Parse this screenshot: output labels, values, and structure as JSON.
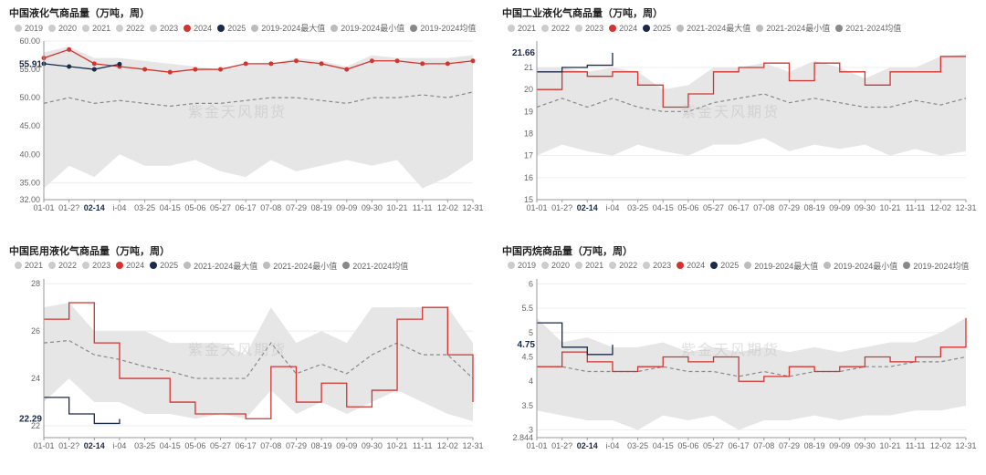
{
  "watermark": "紫金天风期货",
  "global": {
    "x_categories": [
      "01-01",
      "01-2?",
      "02-14",
      "i-04",
      "03-25",
      "04-15",
      "05-06",
      "05-27",
      "06-17",
      "07-08",
      "07-29",
      "08-19",
      "09-09",
      "09-30",
      "10-21",
      "11-11",
      "12-02",
      "12-31"
    ],
    "bold_x_index": 2,
    "band_fill": "#e3e3e3",
    "grid_color": "#eeeeee",
    "axis_color": "#999999",
    "tick_fontsize": 9,
    "title_fontsize": 11,
    "legend_fontsize": 9,
    "background_color": "#ffffff"
  },
  "panels": [
    {
      "id": "lpg-total",
      "title": "中国液化气商品量（万吨，周）",
      "ylim": [
        32,
        60
      ],
      "ytick_step": 5,
      "yticks": [
        32.0,
        35.0,
        40.0,
        45.0,
        50.0,
        55.0,
        60.0
      ],
      "legend": [
        {
          "label": "2019",
          "type": "dot",
          "color": "#cccccc"
        },
        {
          "label": "2020",
          "type": "dot",
          "color": "#cccccc"
        },
        {
          "label": "2021",
          "type": "dot",
          "color": "#cccccc"
        },
        {
          "label": "2022",
          "type": "dot",
          "color": "#cccccc"
        },
        {
          "label": "2023",
          "type": "dot",
          "color": "#cccccc"
        },
        {
          "label": "2024",
          "type": "dot",
          "color": "#d4342f"
        },
        {
          "label": "2025",
          "type": "dot",
          "color": "#1a2a4a"
        },
        {
          "label": "2019-2024最大值",
          "type": "dot",
          "color": "#bcbcbc"
        },
        {
          "label": "2019-2024最小值",
          "type": "dot",
          "color": "#bcbcbc"
        },
        {
          "label": "2019-2024均值",
          "type": "dot",
          "color": "#888888"
        }
      ],
      "band_upper": [
        58,
        59,
        57,
        57,
        56.5,
        56,
        55.5,
        55,
        56,
        56,
        57,
        56.5,
        55.5,
        57.5,
        57,
        57,
        57,
        57.5
      ],
      "band_lower": [
        34,
        38,
        36,
        40,
        38,
        38,
        39,
        37,
        36,
        39,
        37,
        38,
        39,
        38,
        39,
        34,
        36,
        39
      ],
      "mean": [
        49,
        50,
        49,
        49.5,
        49,
        48.5,
        49,
        49,
        49.5,
        50,
        50,
        49.5,
        49,
        50,
        50,
        50.5,
        50,
        51
      ],
      "series_2024": {
        "color": "#d4342f",
        "marker": "circle",
        "marker_size": 2.5,
        "line_width": 1.3,
        "values": [
          57,
          58.5,
          56,
          55.5,
          55,
          54.5,
          55,
          55,
          56,
          56,
          56.5,
          56,
          55,
          56.5,
          56.5,
          56,
          56,
          56.5
        ]
      },
      "series_2025": {
        "color": "#1a2a4a",
        "marker": "circle",
        "marker_size": 2.5,
        "line_width": 1.3,
        "values": [
          56,
          55.5,
          55,
          55.91,
          null,
          null,
          null,
          null,
          null,
          null,
          null,
          null,
          null,
          null,
          null,
          null,
          null,
          null
        ]
      },
      "callout": {
        "text": "55.91",
        "x_index": 0.3,
        "y": 55.91,
        "color": "#1a2a4a"
      }
    },
    {
      "id": "lpg-industrial",
      "title": "中国工业液化气商品量（万吨，周）",
      "ylim": [
        15,
        22.2
      ],
      "ytick_step": 1,
      "yticks": [
        15,
        16,
        17,
        18,
        19,
        20,
        21
      ],
      "legend": [
        {
          "label": "2021",
          "type": "dot",
          "color": "#cccccc"
        },
        {
          "label": "2022",
          "type": "dot",
          "color": "#cccccc"
        },
        {
          "label": "2023",
          "type": "dot",
          "color": "#cccccc"
        },
        {
          "label": "2024",
          "type": "dot",
          "color": "#d4342f"
        },
        {
          "label": "2025",
          "type": "dot",
          "color": "#1a2a4a"
        },
        {
          "label": "2021-2024最大值",
          "type": "dot",
          "color": "#bcbcbc"
        },
        {
          "label": "2021-2024最小值",
          "type": "dot",
          "color": "#bcbcbc"
        },
        {
          "label": "2021-2024均值",
          "type": "dot",
          "color": "#888888"
        }
      ],
      "band_upper": [
        21,
        21,
        20.8,
        21,
        20.8,
        20,
        20.2,
        21,
        21,
        21.2,
        20.8,
        21.3,
        21,
        20.5,
        21,
        21,
        21.5,
        21.6
      ],
      "band_lower": [
        17,
        17.5,
        17.2,
        17,
        17.5,
        17.2,
        17,
        17.5,
        17.5,
        17.8,
        17.2,
        17.5,
        17.3,
        17.5,
        17,
        17.3,
        17,
        17.2
      ],
      "mean": [
        19.2,
        19.6,
        19.2,
        19.6,
        19.2,
        19,
        19,
        19.4,
        19.6,
        19.8,
        19.4,
        19.6,
        19.4,
        19.2,
        19.2,
        19.5,
        19.3,
        19.6
      ],
      "series_2024": {
        "color": "#d4342f",
        "marker": null,
        "line_width": 1.3,
        "step": true,
        "values": [
          20,
          20.8,
          20.6,
          20.8,
          20.2,
          19.2,
          19.8,
          20.8,
          21,
          21.2,
          20.4,
          21.2,
          20.8,
          20.2,
          20.8,
          20.8,
          21.5,
          21.5
        ]
      },
      "series_2025": {
        "color": "#1a2a4a",
        "marker": null,
        "line_width": 1.3,
        "step": true,
        "values": [
          20.8,
          21,
          21.1,
          21.66,
          null,
          null,
          null,
          null,
          null,
          null,
          null,
          null,
          null,
          null,
          null,
          null,
          null,
          null
        ]
      },
      "callout": {
        "text": "21.66",
        "x_index": 0.3,
        "y": 21.66,
        "color": "#1a2a4a"
      }
    },
    {
      "id": "lpg-residential",
      "title": "中国民用液化气商品量（万吨，周）",
      "ylim": [
        21.5,
        28.2
      ],
      "ytick_step": 2,
      "yticks": [
        22,
        24,
        26,
        28
      ],
      "legend": [
        {
          "label": "2021",
          "type": "dot",
          "color": "#cccccc"
        },
        {
          "label": "2022",
          "type": "dot",
          "color": "#cccccc"
        },
        {
          "label": "2023",
          "type": "dot",
          "color": "#cccccc"
        },
        {
          "label": "2024",
          "type": "dot",
          "color": "#d4342f"
        },
        {
          "label": "2025",
          "type": "dot",
          "color": "#1a2a4a"
        },
        {
          "label": "2021-2024最大值",
          "type": "dot",
          "color": "#bcbcbc"
        },
        {
          "label": "2021-2024最小值",
          "type": "dot",
          "color": "#bcbcbc"
        },
        {
          "label": "2021-2024均值",
          "type": "dot",
          "color": "#888888"
        }
      ],
      "band_upper": [
        27,
        27.2,
        26,
        26,
        26,
        25.5,
        25.5,
        25.5,
        25,
        27,
        25.5,
        26,
        25.5,
        27,
        27,
        27,
        27,
        25.5
      ],
      "band_lower": [
        23,
        24,
        23,
        23,
        22.5,
        22.5,
        22.3,
        22.5,
        22.3,
        23.5,
        22.5,
        23,
        22.5,
        23,
        23.5,
        23,
        22.5,
        22.2
      ],
      "mean": [
        25.5,
        25.6,
        25,
        24.8,
        24.5,
        24.3,
        24,
        24,
        24,
        25.5,
        24.2,
        24.6,
        24.2,
        25,
        25.5,
        25,
        25,
        24
      ],
      "series_2024": {
        "color": "#d4342f",
        "marker": null,
        "line_width": 1.3,
        "step": true,
        "values": [
          26.5,
          27.2,
          25.5,
          24,
          24,
          23,
          22.5,
          22.5,
          22.3,
          24.5,
          23,
          23.8,
          22.8,
          23.5,
          26.5,
          27,
          25,
          23
        ]
      },
      "series_2025": {
        "color": "#1a2a4a",
        "marker": null,
        "line_width": 1.3,
        "step": true,
        "values": [
          23.2,
          22.5,
          22.1,
          22.29,
          null,
          null,
          null,
          null,
          null,
          null,
          null,
          null,
          null,
          null,
          null,
          null,
          null,
          null
        ]
      },
      "callout": {
        "text": "22.29",
        "x_index": 0.3,
        "y": 22.29,
        "color": "#1a2a4a"
      }
    },
    {
      "id": "propane",
      "title": "中国丙烷商品量（万吨，周）",
      "ylim": [
        2.844,
        6.1
      ],
      "ytick_step": 0.5,
      "yticks": [
        2.844,
        3,
        3.5,
        4,
        4.5,
        5,
        5.5,
        6
      ],
      "legend": [
        {
          "label": "2019",
          "type": "dot",
          "color": "#cccccc"
        },
        {
          "label": "2020",
          "type": "dot",
          "color": "#cccccc"
        },
        {
          "label": "2021",
          "type": "dot",
          "color": "#cccccc"
        },
        {
          "label": "2022",
          "type": "dot",
          "color": "#cccccc"
        },
        {
          "label": "2023",
          "type": "dot",
          "color": "#cccccc"
        },
        {
          "label": "2024",
          "type": "dot",
          "color": "#d4342f"
        },
        {
          "label": "2025",
          "type": "dot",
          "color": "#1a2a4a"
        },
        {
          "label": "2019-2024最大值",
          "type": "dot",
          "color": "#bcbcbc"
        },
        {
          "label": "2019-2024最小值",
          "type": "dot",
          "color": "#bcbcbc"
        },
        {
          "label": "2019-2024均值",
          "type": "dot",
          "color": "#888888"
        }
      ],
      "band_upper": [
        5.3,
        4.8,
        4.9,
        4.7,
        4.7,
        4.8,
        4.6,
        4.7,
        4.6,
        4.7,
        4.6,
        4.7,
        4.6,
        4.7,
        4.8,
        4.8,
        5.0,
        5.3
      ],
      "band_lower": [
        3.4,
        3.3,
        3.2,
        3.2,
        3.0,
        3.3,
        3.2,
        3.3,
        3.0,
        3.2,
        3.2,
        3.3,
        3.2,
        3.3,
        3.3,
        3.4,
        3.4,
        3.5
      ],
      "mean": [
        4.3,
        4.3,
        4.2,
        4.2,
        4.2,
        4.3,
        4.2,
        4.2,
        4.1,
        4.2,
        4.1,
        4.2,
        4.2,
        4.3,
        4.3,
        4.4,
        4.4,
        4.5
      ],
      "series_2024": {
        "color": "#d4342f",
        "marker": null,
        "line_width": 1.3,
        "step": true,
        "values": [
          4.3,
          4.6,
          4.4,
          4.2,
          4.3,
          4.5,
          4.4,
          4.5,
          4.0,
          4.1,
          4.3,
          4.2,
          4.3,
          4.5,
          4.4,
          4.5,
          4.7,
          5.3
        ]
      },
      "series_2025": {
        "color": "#1a2a4a",
        "marker": null,
        "line_width": 1.3,
        "step": true,
        "values": [
          5.2,
          4.7,
          4.55,
          4.75,
          null,
          null,
          null,
          null,
          null,
          null,
          null,
          null,
          null,
          null,
          null,
          null,
          null,
          null
        ]
      },
      "callout": {
        "text": "4.75",
        "x_index": 0.3,
        "y": 4.75,
        "color": "#1a2a4a"
      }
    }
  ]
}
